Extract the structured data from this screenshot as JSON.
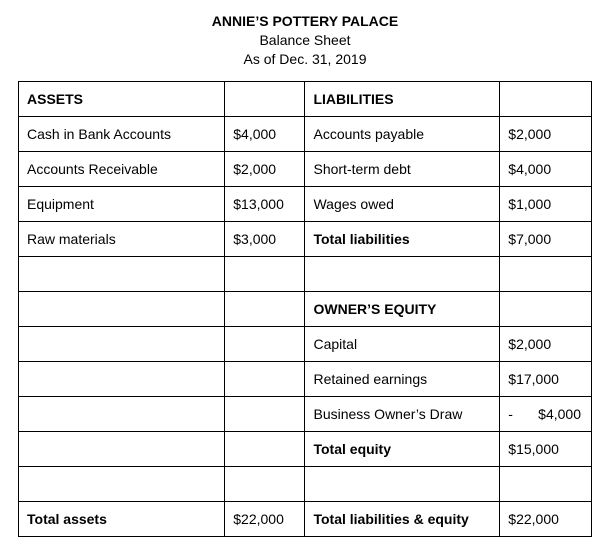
{
  "header": {
    "company": "ANNIE’S POTTERY PALACE",
    "title": "Balance Sheet",
    "asof": "As of Dec. 31, 2019"
  },
  "table": {
    "colors": {
      "border": "#000000",
      "background": "#ffffff",
      "text": "#000000"
    },
    "fontsize": 14,
    "rows": [
      {
        "c1": "ASSETS",
        "c1_bold": true,
        "c2": "",
        "c3": "LIABILITIES",
        "c3_bold": true,
        "c4": ""
      },
      {
        "c1": "Cash in Bank Accounts",
        "c2": "$4,000",
        "c3": "Accounts payable",
        "c4": "$2,000"
      },
      {
        "c1": "Accounts Receivable",
        "c2": "$2,000",
        "c3": "Short-term debt",
        "c4": "$4,000"
      },
      {
        "c1": "Equipment",
        "c2": "$13,000",
        "c3": "Wages owed",
        "c4": "$1,000"
      },
      {
        "c1": "Raw materials",
        "c2": "$3,000",
        "c3": "Total liabilities",
        "c3_bold": true,
        "c4": "$7,000"
      },
      {
        "c1": "",
        "c2": "",
        "c3": "",
        "c4": ""
      },
      {
        "c1": "",
        "c2": "",
        "c3": "OWNER’S EQUITY",
        "c3_bold": true,
        "c4": ""
      },
      {
        "c1": "",
        "c2": "",
        "c3": "Capital",
        "c4": "$2,000"
      },
      {
        "c1": "",
        "c2": "",
        "c3": "Retained earnings",
        "c4": "$17,000"
      },
      {
        "c1": "",
        "c2": "",
        "c3": "Business Owner’s Draw",
        "c4": "$4,000",
        "c4_negative": true
      },
      {
        "c1": "",
        "c2": "",
        "c3": "Total equity",
        "c3_bold": true,
        "c4": "$15,000"
      },
      {
        "c1": "",
        "c2": "",
        "c3": "",
        "c4": ""
      },
      {
        "c1": "Total assets",
        "c1_bold": true,
        "c2": "$22,000",
        "c3": "Total liabilities & equity",
        "c3_bold": true,
        "c4": "$22,000"
      }
    ]
  }
}
